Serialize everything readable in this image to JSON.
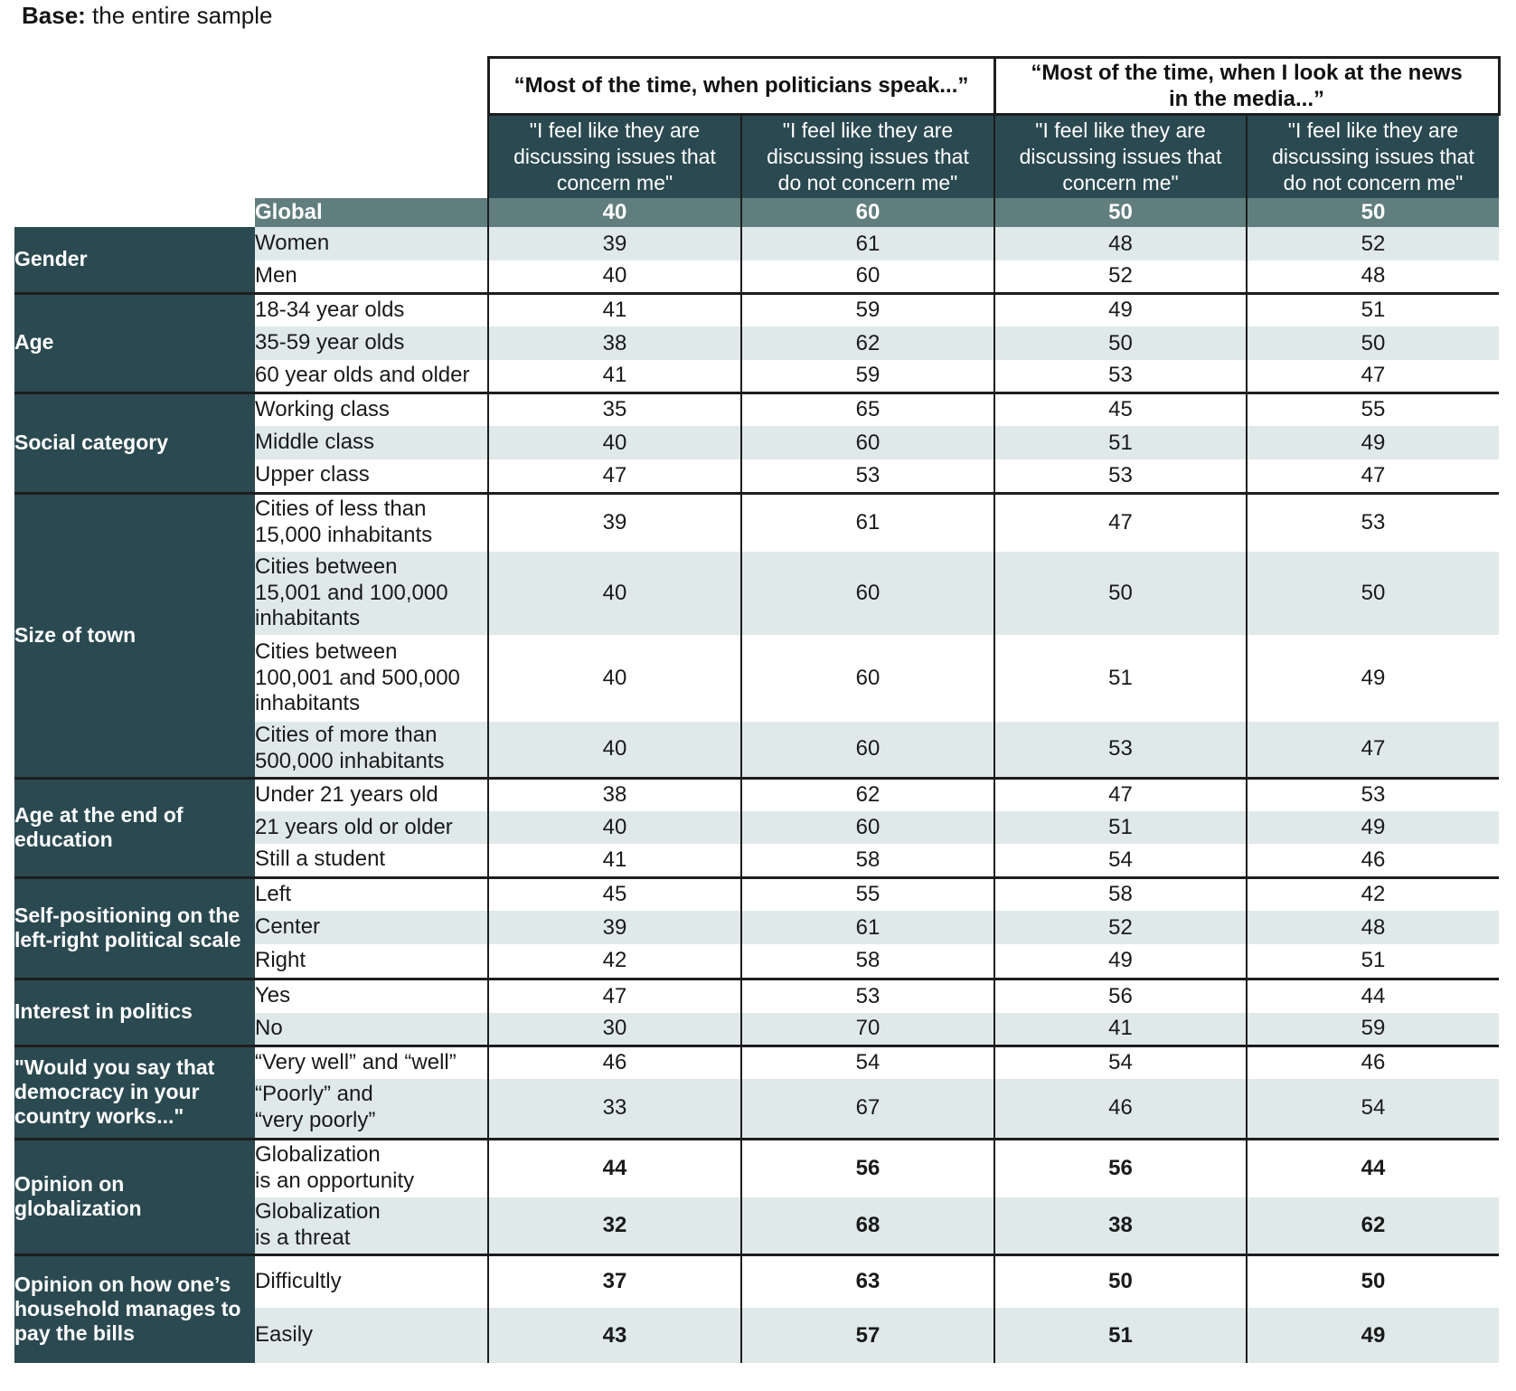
{
  "base_note": {
    "label": "Base:",
    "text": " the entire sample"
  },
  "colors": {
    "header_teal": "#2b4950",
    "global_slate": "#617e7e",
    "row_light": "#dfe9e9",
    "line_dark": "#1d1d1d"
  },
  "table": {
    "group_headers": [
      "“Most of the time, when politicians speak...”",
      "“Most of the time, when I look at the news\nin the media...”"
    ],
    "sub_headers": [
      "\"I feel like they are\ndiscussing issues that\nconcern me\"",
      "\"I feel like they are\ndiscussing issues that\ndo not concern me\"",
      "\"I feel like they are\ndiscussing issues that\nconcern me\"",
      "\"I feel like they are\ndiscussing issues that\ndo not concern me\""
    ],
    "global_row": {
      "label": "Global",
      "values": [
        40,
        60,
        50,
        50
      ]
    },
    "sections": [
      {
        "category": "Gender",
        "rows": [
          {
            "label": "Women",
            "values": [
              39,
              61,
              48,
              52
            ],
            "shade": true
          },
          {
            "label": "Men",
            "values": [
              40,
              60,
              52,
              48
            ],
            "shade": false
          }
        ]
      },
      {
        "category": "Age",
        "rows": [
          {
            "label": "18-34 year olds",
            "values": [
              41,
              59,
              49,
              51
            ],
            "shade": false
          },
          {
            "label": "35-59 year olds",
            "values": [
              38,
              62,
              50,
              50
            ],
            "shade": true
          },
          {
            "label": "60 year olds and older",
            "values": [
              41,
              59,
              53,
              47
            ],
            "shade": false
          }
        ]
      },
      {
        "category": "Social category",
        "rows": [
          {
            "label": "Working class",
            "values": [
              35,
              65,
              45,
              55
            ],
            "shade": false
          },
          {
            "label": "Middle class",
            "values": [
              40,
              60,
              51,
              49
            ],
            "shade": true
          },
          {
            "label": "Upper class",
            "values": [
              47,
              53,
              53,
              47
            ],
            "shade": false
          }
        ]
      },
      {
        "category": "Size of town",
        "rows": [
          {
            "label": "Cities of less than\n15,000 inhabitants",
            "values": [
              39,
              61,
              47,
              53
            ],
            "shade": false
          },
          {
            "label": "Cities between\n15,001 and 100,000\ninhabitants",
            "values": [
              40,
              60,
              50,
              50
            ],
            "shade": true
          },
          {
            "label": "Cities between\n100,001 and 500,000\ninhabitants",
            "values": [
              40,
              60,
              51,
              49
            ],
            "shade": false
          },
          {
            "label": "Cities of more than\n500,000 inhabitants",
            "values": [
              40,
              60,
              53,
              47
            ],
            "shade": true
          }
        ]
      },
      {
        "category": "Age at the end of education",
        "rows": [
          {
            "label": "Under 21 years old",
            "values": [
              38,
              62,
              47,
              53
            ],
            "shade": false
          },
          {
            "label": "21 years old or older",
            "values": [
              40,
              60,
              51,
              49
            ],
            "shade": true
          },
          {
            "label": "Still a student",
            "values": [
              41,
              58,
              54,
              46
            ],
            "shade": false
          }
        ]
      },
      {
        "category": "Self-positioning on the left-right political scale",
        "rows": [
          {
            "label": "Left",
            "values": [
              45,
              55,
              58,
              42
            ],
            "shade": false
          },
          {
            "label": "Center",
            "values": [
              39,
              61,
              52,
              48
            ],
            "shade": true
          },
          {
            "label": "Right",
            "values": [
              42,
              58,
              49,
              51
            ],
            "shade": false
          }
        ]
      },
      {
        "category": "Interest in politics",
        "rows": [
          {
            "label": "Yes",
            "values": [
              47,
              53,
              56,
              44
            ],
            "shade": false
          },
          {
            "label": "No",
            "values": [
              30,
              70,
              41,
              59
            ],
            "shade": true
          }
        ]
      },
      {
        "category": "\"Would you say that democracy in your country works...\"",
        "rows": [
          {
            "label": "“Very well” and “well”",
            "values": [
              46,
              54,
              54,
              46
            ],
            "shade": false
          },
          {
            "label": "“Poorly” and\n“very poorly”",
            "values": [
              33,
              67,
              46,
              54
            ],
            "shade": true
          }
        ]
      },
      {
        "category": "Opinion on globalization",
        "emphasis": true,
        "rows": [
          {
            "label": "Globalization\nis an opportunity",
            "values": [
              44,
              56,
              56,
              44
            ],
            "shade": false
          },
          {
            "label": "Globalization\nis a threat",
            "values": [
              32,
              68,
              38,
              62
            ],
            "shade": true
          }
        ]
      },
      {
        "category": "Opinion on how one’s household manages to pay the bills",
        "emphasis": true,
        "rows": [
          {
            "label": "Difficultly",
            "values": [
              37,
              63,
              50,
              50
            ],
            "shade": false
          },
          {
            "label": "Easily",
            "values": [
              43,
              57,
              51,
              49
            ],
            "shade": true
          }
        ]
      }
    ]
  }
}
